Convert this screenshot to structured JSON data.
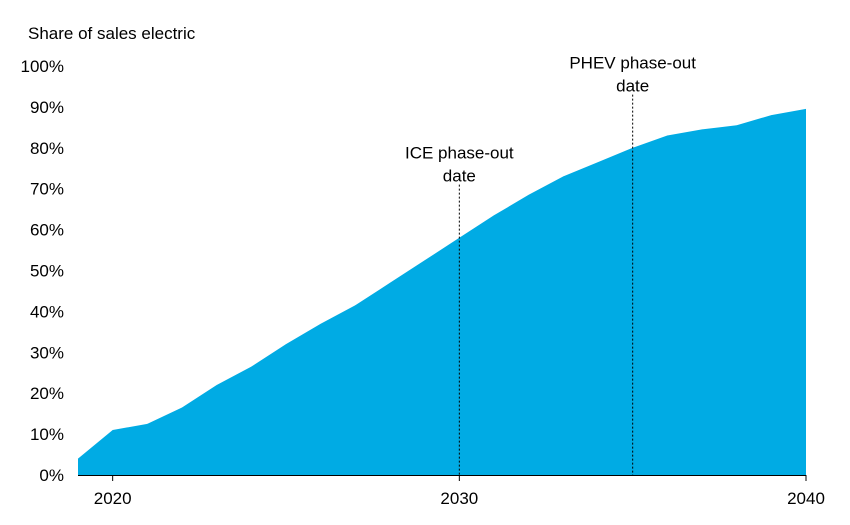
{
  "chart_data": {
    "type": "area",
    "title": "",
    "xlabel": "",
    "ylabel": "Share of sales electric",
    "x": [
      2019,
      2020,
      2021,
      2022,
      2023,
      2024,
      2025,
      2026,
      2027,
      2028,
      2029,
      2030,
      2031,
      2032,
      2033,
      2034,
      2035,
      2036,
      2037,
      2038,
      2039,
      2040
    ],
    "values": [
      4,
      11,
      12.5,
      16.5,
      22,
      26.5,
      32,
      37,
      41.5,
      47,
      52.5,
      58,
      63.5,
      68.5,
      73,
      76.5,
      80,
      83,
      84.5,
      85.5,
      88,
      89.5
    ],
    "xlim": [
      2019,
      2040
    ],
    "ylim": [
      0,
      100
    ],
    "x_ticks": [
      "2020",
      "2030",
      "2040"
    ],
    "x_tick_values": [
      2020,
      2030,
      2040
    ],
    "y_ticks": [
      "0%",
      "10%",
      "20%",
      "30%",
      "40%",
      "50%",
      "60%",
      "70%",
      "80%",
      "90%",
      "100%"
    ],
    "y_tick_values": [
      0,
      10,
      20,
      30,
      40,
      50,
      60,
      70,
      80,
      90,
      100
    ],
    "grid": false,
    "legend": "none",
    "fill_color": "#00ABE4",
    "annotations": [
      {
        "x": 2030,
        "y_top": 71,
        "lines": [
          "ICE phase-out",
          "date"
        ]
      },
      {
        "x": 2035,
        "y_top": 93,
        "lines": [
          "PHEV phase-out",
          "date"
        ]
      }
    ]
  }
}
